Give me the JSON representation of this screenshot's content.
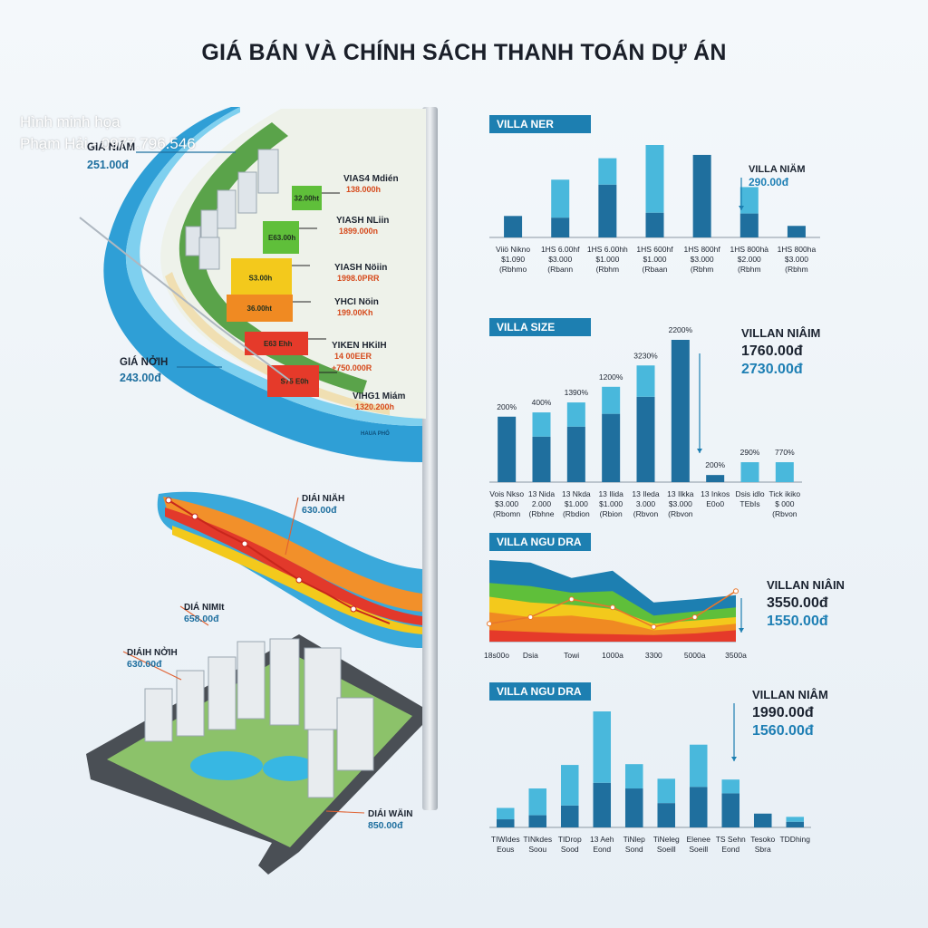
{
  "title": "GIÁ BÁN VÀ CHÍNH SÁCH THANH TOÁN DỰ ÁN",
  "watermark": {
    "line1": "Hình minh họa",
    "line2": "Phạm Hải - 0977.796.546"
  },
  "colors": {
    "dark": "#1f6f9e",
    "light": "#49b8dc",
    "header": "#1d7fb1",
    "green": "#5fbf3a",
    "yellow": "#f3c91c",
    "orange": "#f08a22",
    "red": "#e53a2a"
  },
  "map_top": {
    "left_labels": [
      {
        "name": "GIÁ NIÂM",
        "value": "251.00đ"
      },
      {
        "name": "GIÁ NỞIH",
        "value": "243.00đ"
      }
    ],
    "tiers": [
      {
        "code": "32.00ht",
        "name": "VIAS4 Mdién",
        "price": "138.000h",
        "color": "#5fbf3a"
      },
      {
        "code": "E63.00h",
        "name": "YIASH NLiin",
        "price": "1899.000n",
        "color": "#5fbf3a"
      },
      {
        "code": "S3.00h",
        "name": "YIASH Nöiin",
        "price": "1998.0PRR",
        "color": "#f3c91c"
      },
      {
        "code": "36.00ht",
        "name": "YHCI Nöin",
        "price": "199.00Kh",
        "color": "#f08a22"
      },
      {
        "code": "E63 Ehh",
        "name": "YIKEN HKiIH",
        "price": "14 00EER",
        "price2": "+750.000R",
        "color": "#e53a2a"
      },
      {
        "code": "S75 E0h",
        "name": "VIHG1 Miám",
        "price": "1320.200h",
        "color": "#e53a2a"
      }
    ],
    "river_label": "HAUA PHỐ"
  },
  "map_bottom": {
    "labels": [
      {
        "name": "DIÁI NIÄH",
        "value": "630.00đ"
      },
      {
        "name": "DIÁ NIMIt",
        "value": "658.00đ"
      },
      {
        "name": "DIÁIH NỞIH",
        "value": "630.00đ"
      },
      {
        "name": "DIÁI WÄIN",
        "value": "850.00đ"
      }
    ]
  },
  "chart_data": [
    {
      "type": "bar",
      "title": "VILLA NER",
      "categories": [
        "Viiö Nikno",
        "1HS 6.00hf",
        "1HS 6.00hh",
        "1HS 600hf",
        "1HS 800hf",
        "1HS 800hà",
        "1HS 800ha"
      ],
      "sublabels": [
        [
          "$1.090",
          "(Rbhmo"
        ],
        [
          "$3.000",
          "(Rbann"
        ],
        [
          "$1.000",
          "(Rbhm"
        ],
        [
          "$1.000",
          "(Rbaan"
        ],
        [
          "$3.000",
          "(Rbhm"
        ],
        [
          "$2.000",
          "(Rbhm"
        ],
        [
          "$3.000",
          "(Rbhm"
        ]
      ],
      "series": [
        {
          "values": [
            26,
            24,
            64,
            30,
            100,
            29,
            14
          ]
        },
        {
          "values": [
            0,
            46,
            32,
            82,
            0,
            32,
            0
          ]
        }
      ],
      "annotation": {
        "name": "VILLA NIÄM",
        "value": "290.00đ"
      }
    },
    {
      "type": "bar",
      "title": "VILLA SIZE",
      "categories": [
        "Vois Nkso",
        "13 Nida",
        "13 Nkda",
        "13 Ilida",
        "13 Ileda",
        "13 Ilkka",
        "13 Inkos",
        "Dsis idlo",
        "Tick ikiko"
      ],
      "sublabels": [
        [
          "$3.000",
          "(Rbomn"
        ],
        [
          "2.000",
          "(Rbhne"
        ],
        [
          "$1.000",
          "(Rbdion"
        ],
        [
          "$1.000",
          "(Rbion"
        ],
        [
          "3.000",
          "(Rbvon"
        ],
        [
          "$3.000",
          "(Rbvon"
        ],
        [
          "E0o0",
          ""
        ],
        [
          "TEbIs",
          ""
        ],
        [
          "$ 000",
          "(Rbvon"
        ]
      ],
      "data_labels": [
        "200%",
        "400%",
        "1390%",
        "1200%",
        "3230%",
        "2200%",
        "200%",
        "290%",
        "770%"
      ],
      "series": [
        {
          "values": [
            46,
            32,
            39,
            48,
            60,
            100,
            5,
            0,
            0
          ]
        },
        {
          "values": [
            0,
            17,
            17,
            19,
            22,
            0,
            0,
            14,
            14
          ]
        }
      ],
      "annotation": {
        "name": "VILLAN NIÂIM",
        "value": "1760.00đ",
        "value2": "2730.00đ"
      }
    },
    {
      "type": "area",
      "title": "VILLA NGU DRA",
      "categories": [
        "18s00o",
        "Dsia",
        "Towi",
        "1000a",
        "3300",
        "5000a",
        "3500a"
      ],
      "series": [
        {
          "values": [
            100,
            97,
            78,
            87,
            48,
            52,
            57
          ]
        },
        {
          "values": [
            72,
            68,
            60,
            62,
            32,
            37,
            42
          ]
        },
        {
          "values": [
            55,
            48,
            45,
            40,
            22,
            26,
            30
          ]
        },
        {
          "values": [
            36,
            30,
            32,
            26,
            14,
            17,
            22
          ]
        },
        {
          "values": [
            14,
            12,
            10,
            9,
            8,
            10,
            14
          ]
        }
      ],
      "annotation": {
        "name": "VILLAN NIÂIN",
        "value": "3550.00đ",
        "value2": "1550.00đ"
      }
    },
    {
      "type": "bar",
      "title": "VILLA NGU DRA",
      "categories": [
        "TIWIdes",
        "TINkdes",
        "TIDrop",
        "13 Aeh",
        "TiNlep",
        "TiNeleg",
        "Elenee",
        "TS Sehn",
        "Tesoko",
        "TDDhing"
      ],
      "sublabels": [
        [
          "Eous",
          ""
        ],
        [
          "Soou",
          ""
        ],
        [
          "Sood",
          ""
        ],
        [
          "Eond",
          ""
        ],
        [
          "Sond",
          ""
        ],
        [
          "Soeill",
          ""
        ],
        [
          "Soeill",
          ""
        ],
        [
          "Eond",
          ""
        ],
        [
          "Sbra",
          ""
        ],
        [
          "",
          ""
        ]
      ],
      "series": [
        {
          "values": [
            10,
            15,
            27,
            55,
            48,
            30,
            50,
            42,
            17,
            7
          ]
        },
        {
          "values": [
            14,
            33,
            50,
            88,
            30,
            30,
            52,
            17,
            0,
            6
          ]
        }
      ],
      "annotation": {
        "name": "VILLAN NIÂM",
        "value": "1990.00đ",
        "value2": "1560.00đ"
      }
    }
  ]
}
